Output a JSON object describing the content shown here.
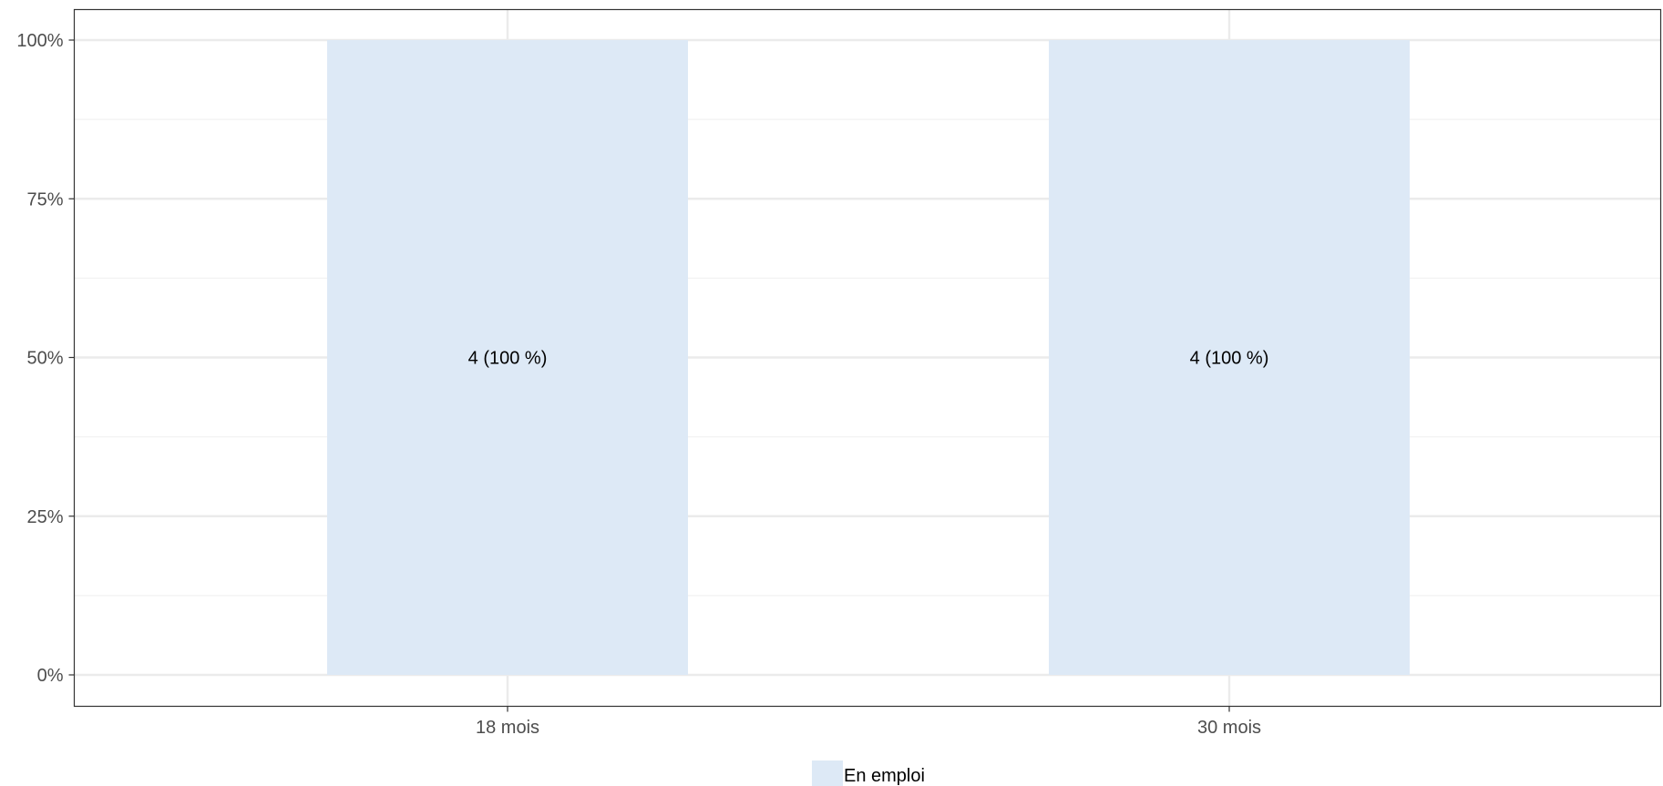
{
  "chart_data": {
    "type": "bar",
    "stacked": true,
    "categories": [
      "18 mois",
      "30 mois"
    ],
    "series": [
      {
        "name": "En emploi",
        "color": "#dde9f6",
        "values": [
          100,
          100
        ],
        "labels": [
          "4 (100 %)",
          "4 (100 %)"
        ]
      }
    ],
    "title": "",
    "xlabel": "",
    "ylabel": "",
    "ylim": [
      0,
      100
    ],
    "yticks": [
      0,
      25,
      50,
      75,
      100
    ],
    "ytick_labels": [
      "0%",
      "25%",
      "50%",
      "75%",
      "100%"
    ],
    "grid": true,
    "legend_position": "bottom",
    "colors": {
      "grid_major": "#ebebeb",
      "grid_minor": "#f2f2f2",
      "panel_border": "#333333",
      "tick_text": "#4d4d4d"
    }
  }
}
